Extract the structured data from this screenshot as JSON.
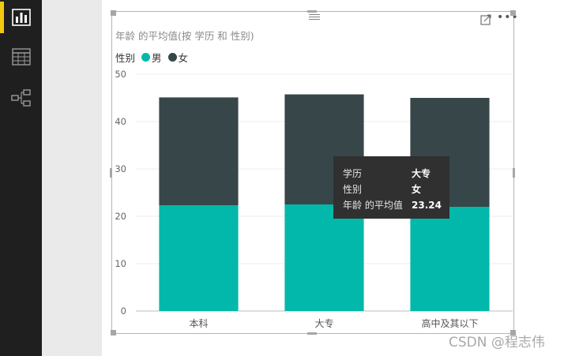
{
  "sidebar": {
    "items": [
      {
        "name": "report-view",
        "icon": "bar-chart-icon",
        "active": true
      },
      {
        "name": "data-view",
        "icon": "table-grid-icon",
        "active": false
      },
      {
        "name": "model-view",
        "icon": "model-relationships-icon",
        "active": false
      }
    ],
    "accent_color": "#f2c811"
  },
  "visual": {
    "title": "年龄 的平均值(按 学历 和 性别)",
    "legend": {
      "title": "性别",
      "items": [
        {
          "label": "男",
          "color": "#01b8aa"
        },
        {
          "label": "女",
          "color": "#374649"
        }
      ]
    },
    "header_icons": [
      "focus-mode-icon",
      "more-options-icon"
    ]
  },
  "chart_data": {
    "type": "bar",
    "stacked": true,
    "title": "年龄 的平均值(按 学历 和 性别)",
    "categories": [
      "本科",
      "大专",
      "高中及其以下"
    ],
    "series": [
      {
        "name": "男",
        "values": [
          22.3,
          22.5,
          22.0
        ],
        "color": "#01b8aa"
      },
      {
        "name": "女",
        "values": [
          22.8,
          23.24,
          23.0
        ],
        "color": "#374649"
      }
    ],
    "ylim": [
      0,
      50
    ],
    "yticks": [
      0,
      10,
      20,
      30,
      40,
      50
    ],
    "grid": true,
    "legend_position": "top-left"
  },
  "tooltip": {
    "rows": [
      {
        "key": "学历",
        "value": "大专"
      },
      {
        "key": "性别",
        "value": "女"
      },
      {
        "key": "年龄 的平均值",
        "value": "23.24"
      }
    ]
  },
  "watermark": "CSDN @程志伟"
}
